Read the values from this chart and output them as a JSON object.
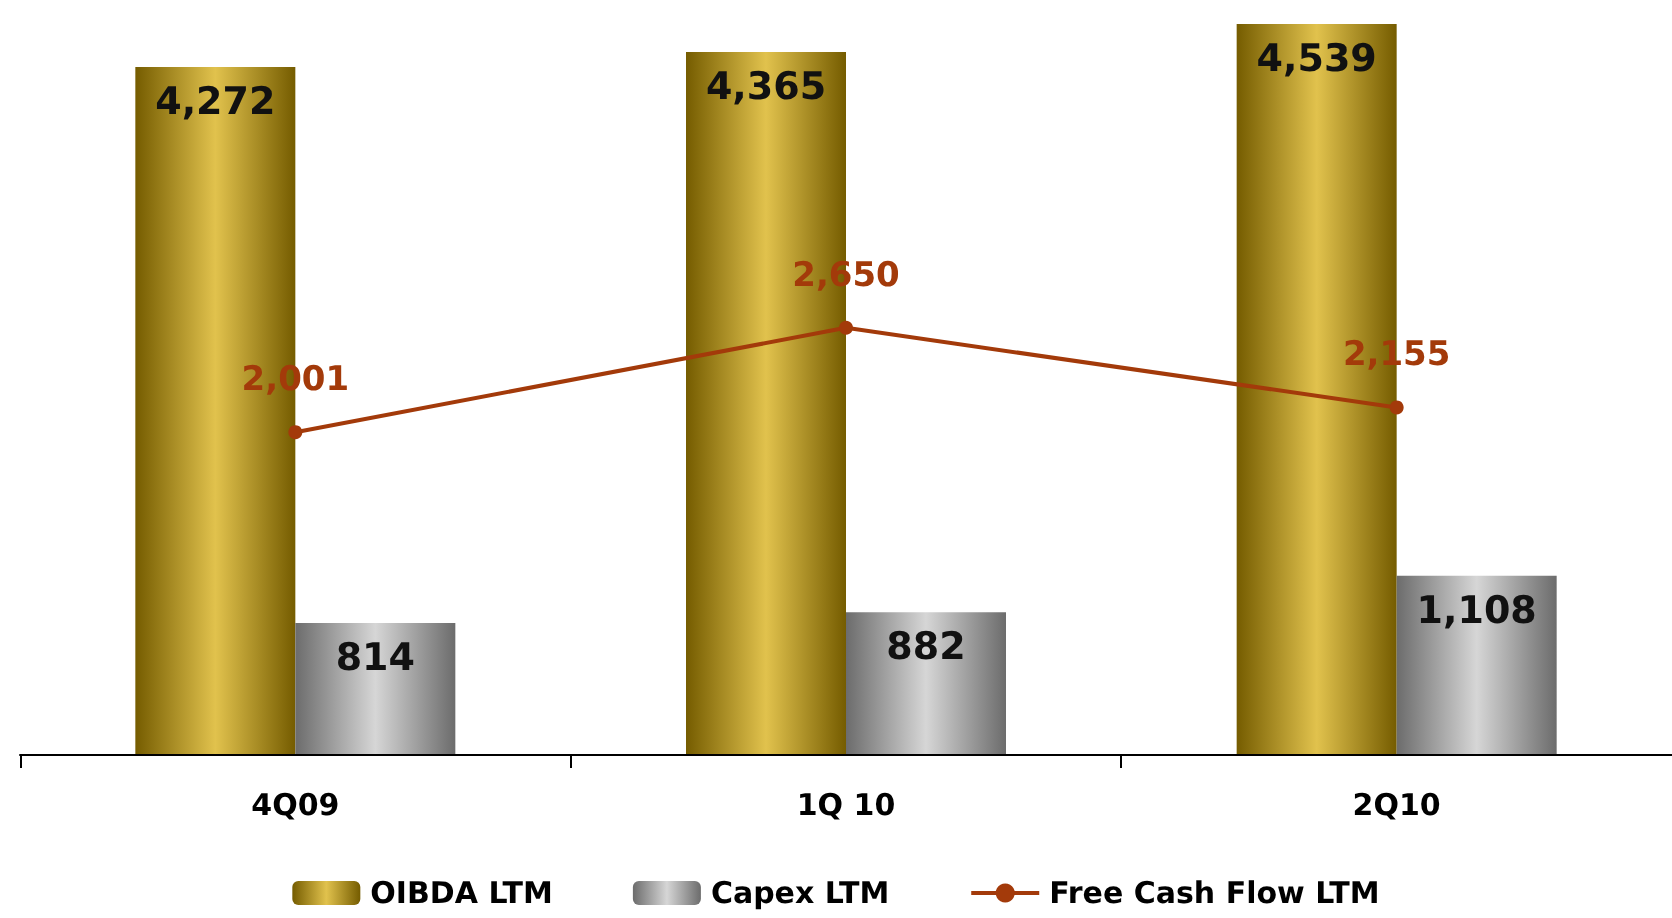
{
  "chart_data": {
    "type": "bar",
    "categories": [
      "4Q09",
      "1Q 10",
      "2Q10"
    ],
    "series": [
      {
        "name": "OIBDA LTM",
        "color": "#d4a800",
        "values": [
          4272,
          4365,
          4539
        ],
        "value_labels": [
          "4,272",
          "4,365",
          "4,539"
        ]
      },
      {
        "name": "Capex LTM",
        "color": "#c4c4c4",
        "values": [
          814,
          882,
          1108
        ],
        "value_labels": [
          "814",
          "882",
          "1,108"
        ]
      },
      {
        "name": "Free Cash Flow LTM",
        "type": "line",
        "color": "#a33a0a",
        "values": [
          2001,
          2650,
          2155
        ],
        "value_labels": [
          "2,001",
          "2,650",
          "2,155"
        ]
      }
    ],
    "legend": "bottom",
    "grid": false,
    "marker": "circle",
    "line_style": "solid"
  }
}
